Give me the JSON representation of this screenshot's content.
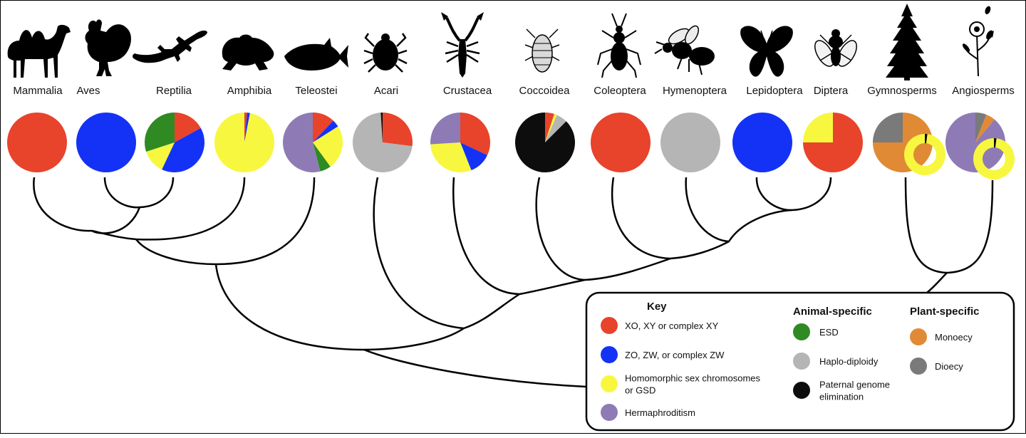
{
  "taxa": [
    {
      "label": "Mammalia",
      "silhouette": "camel-icon",
      "slices": [
        {
          "category": "xy",
          "value": 100
        }
      ]
    },
    {
      "label": "Aves",
      "silhouette": "rooster-icon",
      "slices": [
        {
          "category": "zw",
          "value": 100
        }
      ]
    },
    {
      "label": "Reptilia",
      "silhouette": "lizard-icon",
      "slices": [
        {
          "category": "xy",
          "value": 17
        },
        {
          "category": "zw",
          "value": 40
        },
        {
          "category": "homomorphic",
          "value": 13
        },
        {
          "category": "esd",
          "value": 30
        }
      ]
    },
    {
      "label": "Amphibia",
      "silhouette": "frog-icon",
      "slices": [
        {
          "category": "xy",
          "value": 1.5
        },
        {
          "category": "zw",
          "value": 1.5
        },
        {
          "category": "homomorphic",
          "value": 97
        }
      ]
    },
    {
      "label": "Teleostei",
      "silhouette": "fish-icon",
      "slices": [
        {
          "category": "xy",
          "value": 12
        },
        {
          "category": "zw",
          "value": 4
        },
        {
          "category": "homomorphic",
          "value": 24
        },
        {
          "category": "esd",
          "value": 6
        },
        {
          "category": "hermaphroditism",
          "value": 54
        }
      ]
    },
    {
      "label": "Acari",
      "silhouette": "tick-icon",
      "slices": [
        {
          "category": "xy",
          "value": 27
        },
        {
          "category": "haplodiploidy",
          "value": 72
        },
        {
          "category": "pge",
          "value": 1
        }
      ]
    },
    {
      "label": "Crustacea",
      "silhouette": "scorpion-icon",
      "slices": [
        {
          "category": "xy",
          "value": 32
        },
        {
          "category": "zw",
          "value": 12
        },
        {
          "category": "homomorphic",
          "value": 30
        },
        {
          "category": "hermaphroditism",
          "value": 26
        }
      ]
    },
    {
      "label": "Coccoidea",
      "silhouette": "scale-insect-icon",
      "slices": [
        {
          "category": "xy",
          "value": 5
        },
        {
          "category": "homomorphic",
          "value": 1.5
        },
        {
          "category": "haplodiploidy",
          "value": 6
        },
        {
          "category": "pge",
          "value": 87.5
        }
      ]
    },
    {
      "label": "Coleoptera",
      "silhouette": "beetle-icon",
      "slices": [
        {
          "category": "xy",
          "value": 100
        }
      ]
    },
    {
      "label": "Hymenoptera",
      "silhouette": "bee-icon",
      "slices": [
        {
          "category": "haplodiploidy",
          "value": 100
        }
      ]
    },
    {
      "label": "Lepidoptera",
      "silhouette": "butterfly-icon",
      "slices": [
        {
          "category": "zw",
          "value": 100
        }
      ]
    },
    {
      "label": "Diptera",
      "silhouette": "fly-icon",
      "slices": [
        {
          "category": "xy",
          "value": 75
        },
        {
          "category": "homomorphic",
          "value": 25
        }
      ]
    },
    {
      "label": "Gymnosperms",
      "silhouette": "conifer-icon",
      "slices": [
        {
          "category": "monoecy",
          "value": 75
        },
        {
          "category": "dioecy",
          "value": 25
        }
      ],
      "inset": [
        {
          "category": "pge",
          "value": 2
        },
        {
          "category": "homomorphic",
          "value": 98
        }
      ]
    },
    {
      "label": "Angiosperms",
      "silhouette": "flower-icon",
      "slices": [
        {
          "category": "dioecy",
          "value": 6
        },
        {
          "category": "monoecy",
          "value": 5
        },
        {
          "category": "hermaphroditism",
          "value": 89
        }
      ],
      "inset": [
        {
          "category": "pge",
          "value": 2
        },
        {
          "category": "homomorphic",
          "value": 98
        }
      ]
    }
  ],
  "categories": {
    "xy": {
      "color": "#e8432b"
    },
    "zw": {
      "color": "#1432f5"
    },
    "homomorphic": {
      "color": "#f7f740"
    },
    "hermaphroditism": {
      "color": "#8e7bb5"
    },
    "esd": {
      "color": "#2f8a24"
    },
    "haplodiploidy": {
      "color": "#b5b5b5"
    },
    "pge": {
      "color": "#0d0d0d"
    },
    "monoecy": {
      "color": "#e08a35"
    },
    "dioecy": {
      "color": "#7a7a7a"
    }
  },
  "key": {
    "title": "Key",
    "animal_title": "Animal-specific",
    "plant_title": "Plant-specific",
    "general": [
      {
        "category": "xy",
        "lines": [
          "XO, XY or complex XY"
        ]
      },
      {
        "category": "zw",
        "lines": [
          "ZO, ZW, or complex ZW"
        ]
      },
      {
        "category": "homomorphic",
        "lines": [
          "Homomorphic sex chromosomes",
          "or GSD"
        ]
      },
      {
        "category": "hermaphroditism",
        "lines": [
          "Hermaphroditism"
        ]
      }
    ],
    "animal": [
      {
        "category": "esd",
        "lines": [
          "ESD"
        ]
      },
      {
        "category": "haplodiploidy",
        "lines": [
          "Haplo-diploidy"
        ]
      },
      {
        "category": "pge",
        "lines": [
          "Paternal genome",
          "elimination"
        ]
      }
    ],
    "plant": [
      {
        "category": "monoecy",
        "lines": [
          "Monoecy"
        ]
      },
      {
        "category": "dioecy",
        "lines": [
          "Dioecy"
        ]
      }
    ]
  }
}
